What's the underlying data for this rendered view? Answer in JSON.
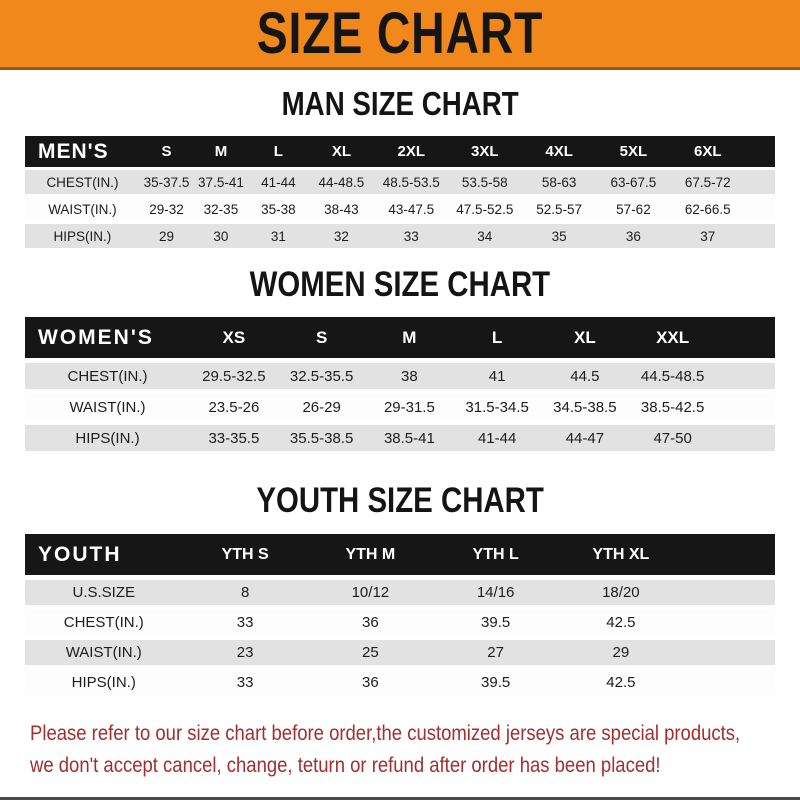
{
  "banner": {
    "title": "SIZE CHART"
  },
  "colors": {
    "banner_bg": "#F0881C",
    "header_bar_bg": "#161616",
    "alt_row_bg": "#E2E2E2",
    "footer_text": "#A32E2E"
  },
  "men": {
    "title": "MAN SIZE CHART",
    "header": [
      "MEN'S",
      "S",
      "M",
      "L",
      "XL",
      "2XL",
      "3XL",
      "4XL",
      "5XL",
      "6XL"
    ],
    "rows": [
      [
        "CHEST(IN.)",
        "35-37.5",
        "37.5-41",
        "41-44",
        "44-48.5",
        "48.5-53.5",
        "53.5-58",
        "58-63",
        "63-67.5",
        "67.5-72"
      ],
      [
        "WAIST(IN.)",
        "29-32",
        "32-35",
        "35-38",
        "38-43",
        "43-47.5",
        "47.5-52.5",
        "52.5-57",
        "57-62",
        "62-66.5"
      ],
      [
        "HIPS(IN.)",
        "29",
        "30",
        "31",
        "32",
        "33",
        "34",
        "35",
        "36",
        "37"
      ]
    ]
  },
  "women": {
    "title": "WOMEN SIZE CHART",
    "header": [
      "WOMEN'S",
      "XS",
      "S",
      "M",
      "L",
      "XL",
      "XXL"
    ],
    "rows": [
      [
        "CHEST(IN.)",
        "29.5-32.5",
        "32.5-35.5",
        "38",
        "41",
        "44.5",
        "44.5-48.5"
      ],
      [
        "WAIST(IN.)",
        "23.5-26",
        "26-29",
        "29-31.5",
        "31.5-34.5",
        "34.5-38.5",
        "38.5-42.5"
      ],
      [
        "HIPS(IN.)",
        "33-35.5",
        "35.5-38.5",
        "38.5-41",
        "41-44",
        "44-47",
        "47-50"
      ]
    ]
  },
  "youth": {
    "title": "YOUTH SIZE CHART",
    "header": [
      "YOUTH",
      "YTH S",
      "YTH M",
      "YTH L",
      "YTH XL"
    ],
    "rows": [
      [
        "U.S.SIZE",
        "8",
        "10/12",
        "14/16",
        "18/20"
      ],
      [
        "CHEST(IN.)",
        "33",
        "36",
        "39.5",
        "42.5"
      ],
      [
        "WAIST(IN.)",
        "23",
        "25",
        "27",
        "29"
      ],
      [
        "HIPS(IN.)",
        "33",
        "36",
        "39.5",
        "42.5"
      ]
    ]
  },
  "footer": {
    "line1": "Please refer to our size chart before order,the customized jerseys are special products,",
    "line2": "we don't accept cancel, change, teturn or refund after order has been placed!"
  }
}
